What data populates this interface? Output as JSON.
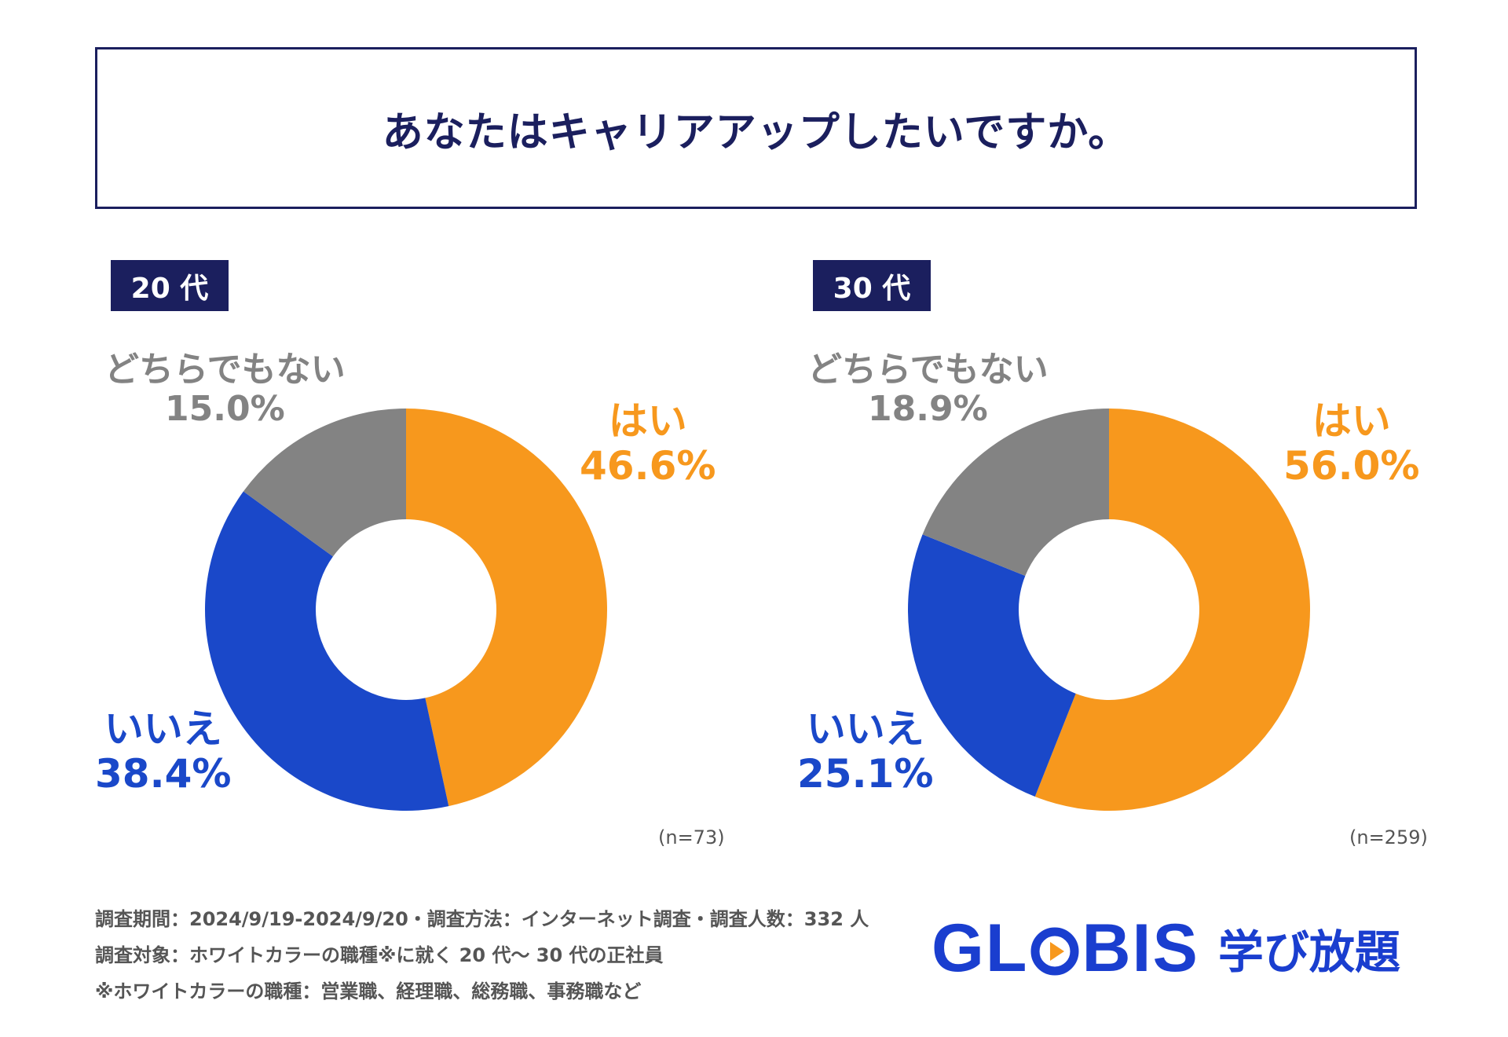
{
  "title": "あなたはキャリアアップしたいですか。",
  "chart_data": [
    {
      "type": "pie",
      "group": "20代",
      "age_label": "20 代",
      "n_label": "(n=73)",
      "colors": [
        "#f7981d",
        "#1a48c9",
        "#838383"
      ],
      "slices": [
        {
          "label": "はい",
          "value": 46.6,
          "display": "46.6%"
        },
        {
          "label": "いいえ",
          "value": 38.4,
          "display": "38.4%"
        },
        {
          "label": "どちらでもない",
          "value": 15.0,
          "display": "15.0%"
        }
      ]
    },
    {
      "type": "pie",
      "group": "30代",
      "age_label": "30 代",
      "n_label": "(n=259)",
      "colors": [
        "#f7981d",
        "#1a48c9",
        "#838383"
      ],
      "slices": [
        {
          "label": "はい",
          "value": 56.0,
          "display": "56.0%"
        },
        {
          "label": "いいえ",
          "value": 25.1,
          "display": "25.1%"
        },
        {
          "label": "どちらでもない",
          "value": 18.9,
          "display": "18.9%"
        }
      ]
    }
  ],
  "footnotes": [
    "調査期間：2024/9/19-2024/9/20・調査方法：インターネット調査・調査人数：332 人",
    "調査対象：ホワイトカラーの職種※に就く 20 代〜 30 代の正社員",
    "※ホワイトカラーの職種：営業職、経理職、総務職、事務職など"
  ],
  "logo": {
    "brand": "GLOBIS",
    "sub": "学び放題"
  }
}
